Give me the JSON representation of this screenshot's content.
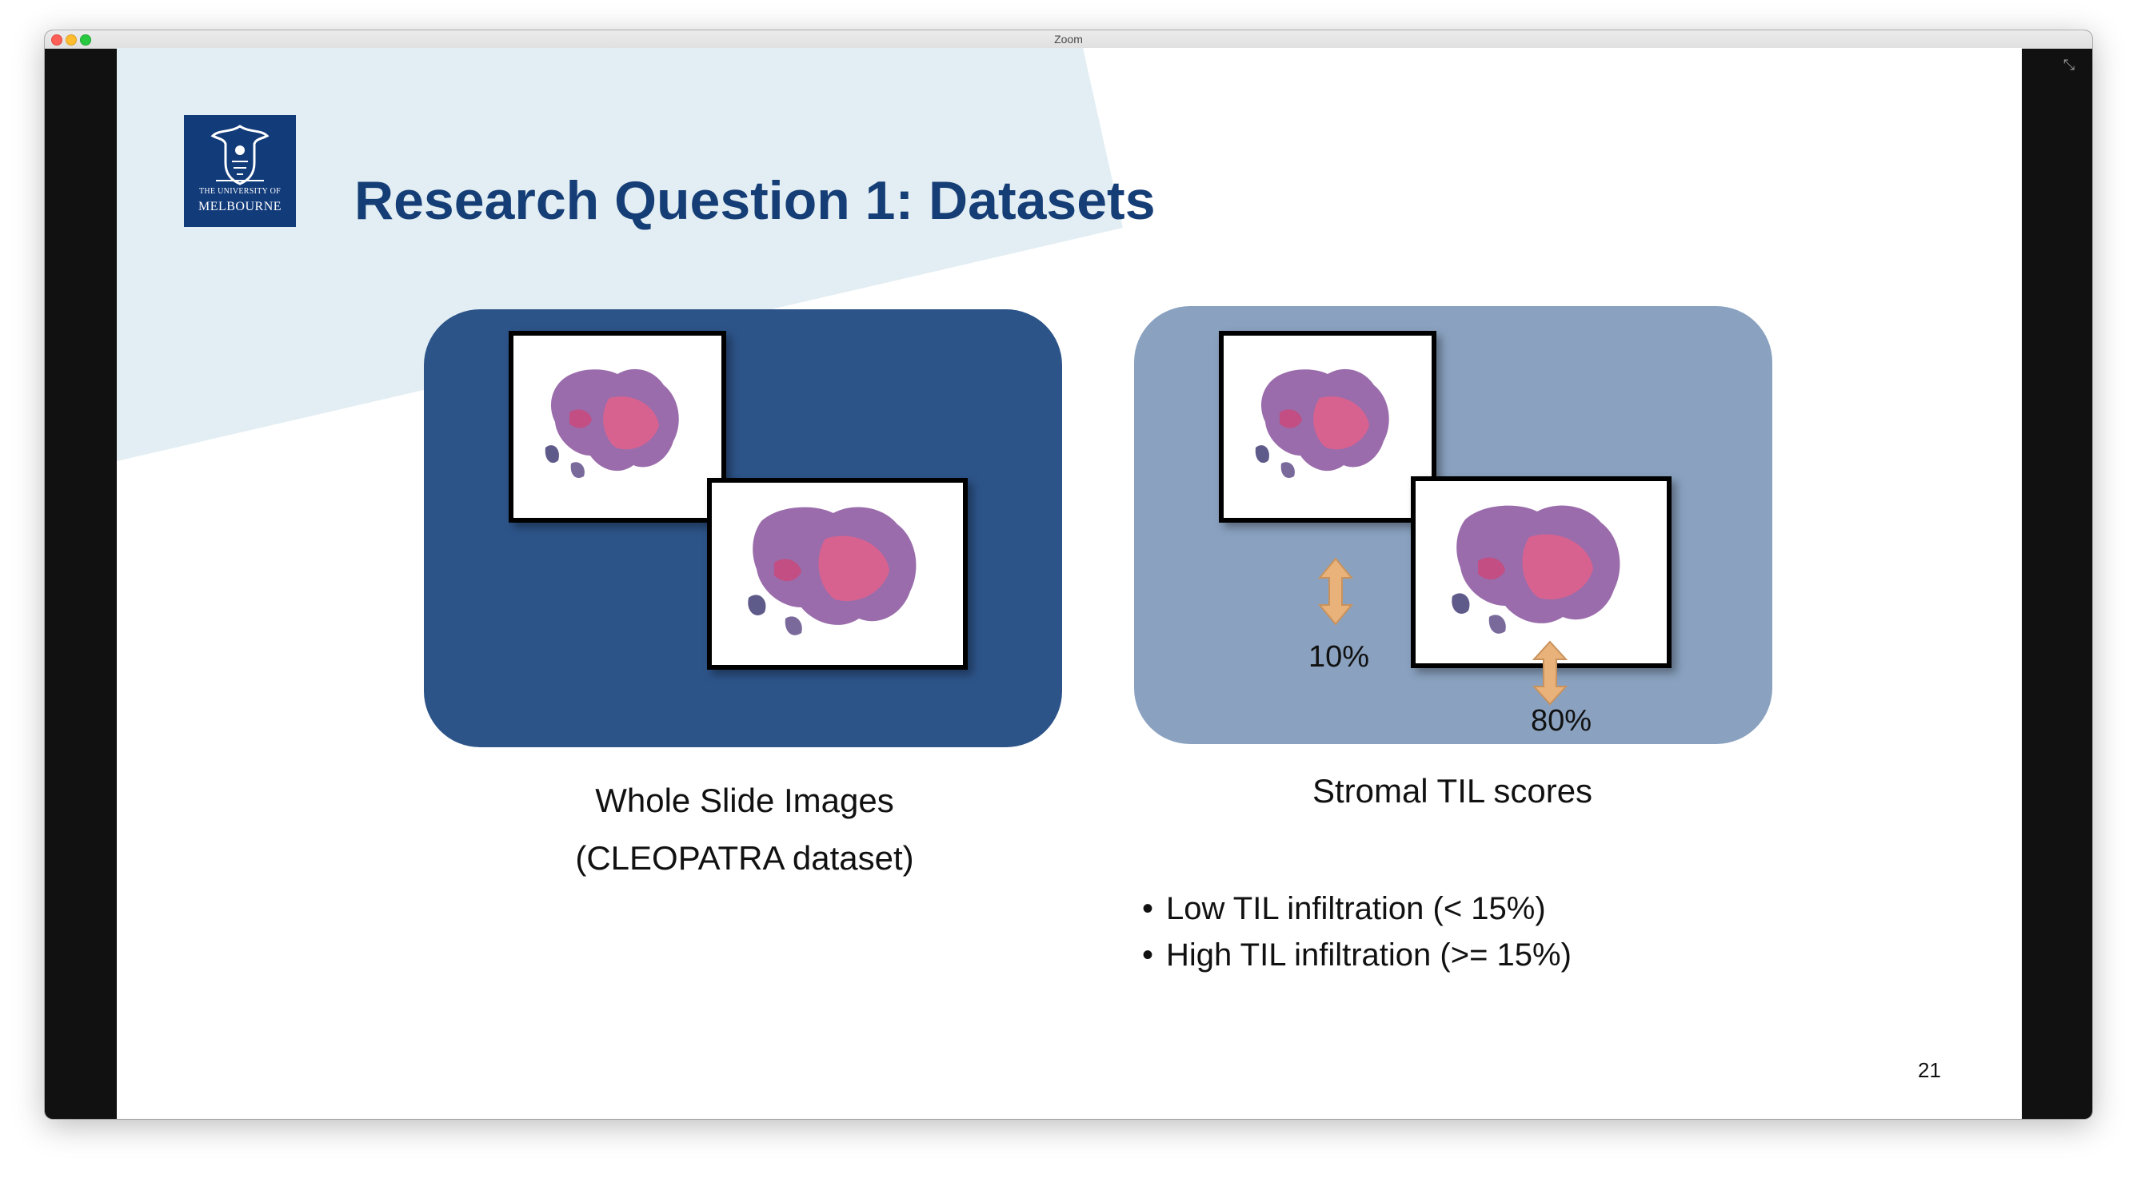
{
  "window": {
    "title": "Zoom"
  },
  "slide": {
    "logo": {
      "line1": "THE UNIVERSITY OF",
      "line2": "MELBOURNE"
    },
    "title": "Research Question 1: Datasets",
    "left_panel": {
      "caption_line1": "Whole Slide Images",
      "caption_line2": "(CLEOPATRA dataset)"
    },
    "right_panel": {
      "score_a": "10%",
      "score_b": "80%",
      "caption": "Stromal TIL scores"
    },
    "bullets": [
      "Low TIL infiltration (< 15%)",
      "High TIL infiltration (>= 15%)"
    ],
    "page_number": "21"
  },
  "colors": {
    "title": "#153d76",
    "left_panel": "#2d5489",
    "right_panel": "#8aa2c0",
    "background_shape": "#e2eef3",
    "arrow": "#e8b27a"
  },
  "icons": [
    "university-crest-icon",
    "fullscreen-icon",
    "double-arrow-icon"
  ]
}
